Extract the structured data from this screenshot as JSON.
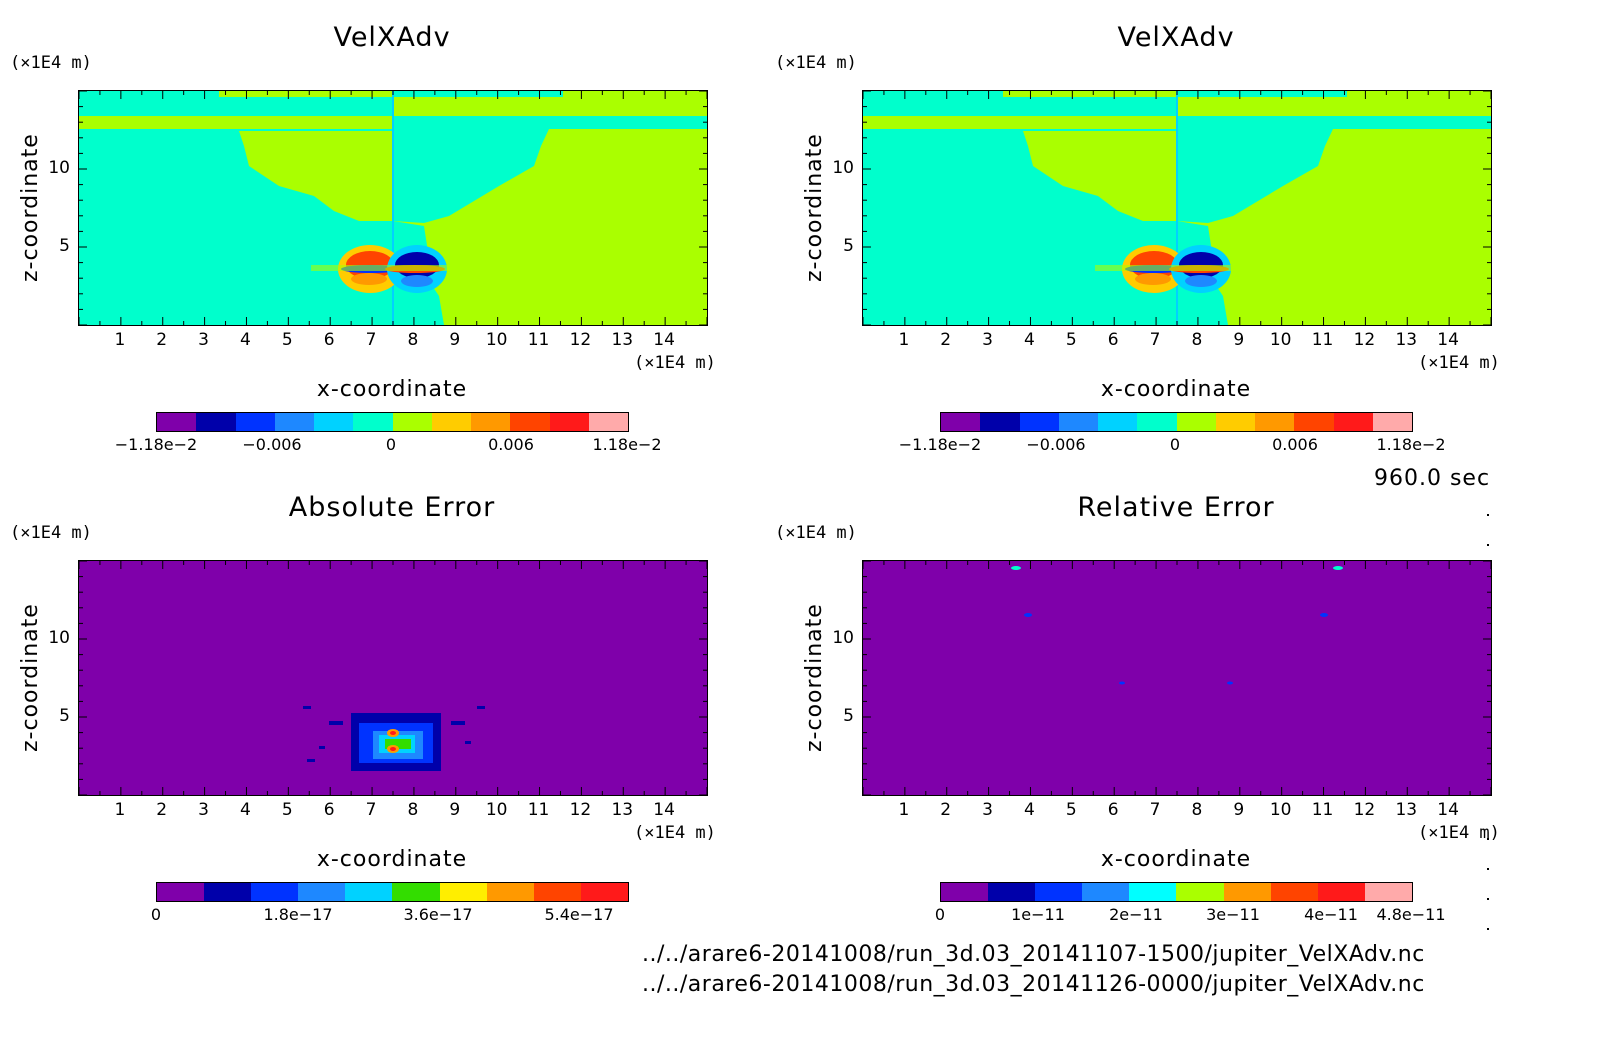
{
  "time_label": "960.0 sec",
  "files": [
    "../../arare6-20141008/run_3d.03_20141107-1500/jupiter_VelXAdv.nc",
    "../../arare6-20141008/run_3d.03_20141126-0000/jupiter_VelXAdv.nc"
  ],
  "colors": {
    "purple": "#7f00aa",
    "navy": "#0000aa",
    "blue": "#0033ff",
    "lightblue": "#1e88ff",
    "cyan": "#00d2ff",
    "aqua": "#00ffcc",
    "lime": "#aaff00",
    "yellow": "#ffcc00",
    "orange": "#ff9900",
    "redorange": "#ff4400",
    "red": "#ff1a1a",
    "pink": "#ffaaaa",
    "green": "#33dd00"
  },
  "chart_data": [
    {
      "type": "heatmap",
      "title": "VelXAdv",
      "xlabel": "x-coordinate",
      "ylabel": "z-coordinate",
      "x_unit": "(×1E4 m)",
      "y_unit": "(×1E4 m)",
      "xticks": [
        "1",
        "2",
        "3",
        "4",
        "5",
        "6",
        "7",
        "8",
        "9",
        "10",
        "11",
        "12",
        "13",
        "14"
      ],
      "yticks": [
        "5",
        "10"
      ],
      "xlim": [
        0,
        15
      ],
      "ylim": [
        0,
        15
      ],
      "colorbar": {
        "labels": [
          "−1.18e−2",
          "−0.006",
          "0",
          "0.006",
          "1.18e−2"
        ],
        "colors": [
          "#7f00aa",
          "#0000aa",
          "#0033ff",
          "#1e88ff",
          "#00d2ff",
          "#00ffcc",
          "#aaff00",
          "#ffcc00",
          "#ff9900",
          "#ff4400",
          "#ff1a1a",
          "#ffaaaa"
        ]
      }
    },
    {
      "type": "heatmap",
      "title": "VelXAdv",
      "xlabel": "x-coordinate",
      "ylabel": "z-coordinate",
      "x_unit": "(×1E4 m)",
      "y_unit": "(×1E4 m)",
      "xticks": [
        "1",
        "2",
        "3",
        "4",
        "5",
        "6",
        "7",
        "8",
        "9",
        "10",
        "11",
        "12",
        "13",
        "14"
      ],
      "yticks": [
        "5",
        "10"
      ],
      "xlim": [
        0,
        15
      ],
      "ylim": [
        0,
        15
      ],
      "colorbar": {
        "labels": [
          "−1.18e−2",
          "−0.006",
          "0",
          "0.006",
          "1.18e−2"
        ],
        "colors": [
          "#7f00aa",
          "#0000aa",
          "#0033ff",
          "#1e88ff",
          "#00d2ff",
          "#00ffcc",
          "#aaff00",
          "#ffcc00",
          "#ff9900",
          "#ff4400",
          "#ff1a1a",
          "#ffaaaa"
        ]
      }
    },
    {
      "type": "heatmap",
      "title": "Absolute Error",
      "xlabel": "x-coordinate",
      "ylabel": "z-coordinate",
      "x_unit": "(×1E4 m)",
      "y_unit": "(×1E4 m)",
      "xticks": [
        "1",
        "2",
        "3",
        "4",
        "5",
        "6",
        "7",
        "8",
        "9",
        "10",
        "11",
        "12",
        "13",
        "14"
      ],
      "yticks": [
        "5",
        "10"
      ],
      "xlim": [
        0,
        15
      ],
      "ylim": [
        0,
        15
      ],
      "colorbar": {
        "labels": [
          "0",
          "1.8e−17",
          "3.6e−17",
          "5.4e−17"
        ],
        "colors": [
          "#7f00aa",
          "#0000aa",
          "#0033ff",
          "#1e88ff",
          "#00d2ff",
          "#33dd00",
          "#ffee00",
          "#ff9900",
          "#ff4400",
          "#ff1a1a"
        ]
      }
    },
    {
      "type": "heatmap",
      "title": "Relative Error",
      "xlabel": "x-coordinate",
      "ylabel": "z-coordinate",
      "x_unit": "(×1E4 m)",
      "y_unit": "(×1E4 m)",
      "xticks": [
        "1",
        "2",
        "3",
        "4",
        "5",
        "6",
        "7",
        "8",
        "9",
        "10",
        "11",
        "12",
        "13",
        "14"
      ],
      "yticks": [
        "5",
        "10"
      ],
      "xlim": [
        0,
        15
      ],
      "ylim": [
        0,
        15
      ],
      "colorbar": {
        "labels": [
          "0",
          "1e−11",
          "2e−11",
          "3e−11",
          "4e−11",
          "4.8e−11"
        ],
        "colors": [
          "#7f00aa",
          "#0000aa",
          "#0033ff",
          "#1e88ff",
          "#00ffff",
          "#aaff00",
          "#ff9900",
          "#ff4400",
          "#ff1a1a",
          "#ffaaaa"
        ]
      }
    }
  ]
}
